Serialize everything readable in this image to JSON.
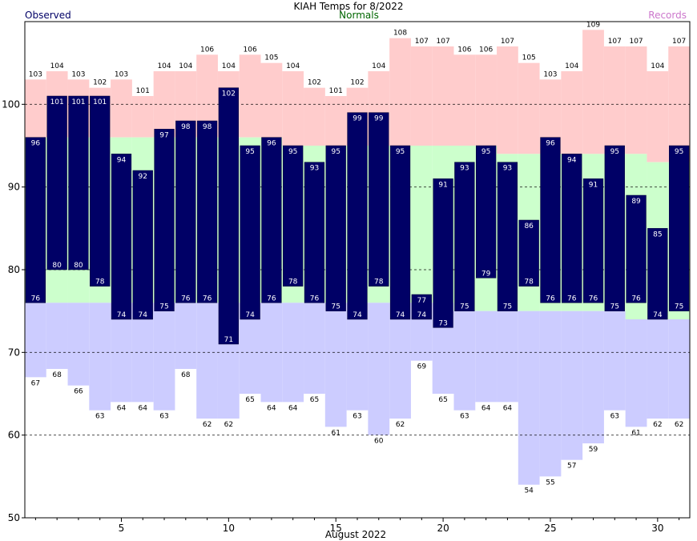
{
  "chart_data": {
    "type": "bar",
    "title": "KIAH Temps for 8/2022",
    "legend": {
      "observed": "Observed",
      "normals": "Normals",
      "records": "Records"
    },
    "xlabel": "August 2022",
    "x": [
      1,
      2,
      3,
      4,
      5,
      6,
      7,
      8,
      9,
      10,
      11,
      12,
      13,
      14,
      15,
      16,
      17,
      18,
      19,
      20,
      21,
      22,
      23,
      24,
      25,
      26,
      27,
      28,
      29,
      30,
      31
    ],
    "xticks": [
      5,
      10,
      15,
      20,
      25,
      30
    ],
    "ylim": [
      50,
      110
    ],
    "yticks": [
      50,
      60,
      70,
      80,
      90,
      100
    ],
    "grid_dashed": [
      60,
      70,
      80,
      90,
      100
    ],
    "colors": {
      "observed": "#000066",
      "normals": "#ccffcc",
      "records_high": "#ffcccc",
      "records_low": "#ccccff",
      "observed_text": "#000066",
      "normals_text": "#006600",
      "records_text": "#cc77cc"
    },
    "series": [
      {
        "name": "Observed",
        "key": "obs_high",
        "values": [
          96,
          101,
          101,
          101,
          94,
          92,
          97,
          98,
          98,
          102,
          95,
          96,
          95,
          93,
          95,
          99,
          99,
          95,
          77,
          91,
          93,
          95,
          93,
          86,
          96,
          94,
          91,
          95,
          89,
          85,
          95
        ]
      },
      {
        "name": "Observed",
        "key": "obs_low",
        "values": [
          76,
          80,
          80,
          78,
          74,
          74,
          75,
          76,
          76,
          71,
          74,
          76,
          78,
          76,
          75,
          74,
          78,
          74,
          74,
          73,
          75,
          79,
          75,
          78,
          76,
          76,
          76,
          75,
          76,
          74,
          75
        ]
      },
      {
        "name": "Normals",
        "key": "normal_high",
        "values": [
          96,
          96,
          96,
          96,
          96,
          96,
          96,
          96,
          96,
          96,
          96,
          96,
          95,
          95,
          95,
          95,
          95,
          95,
          95,
          95,
          95,
          95,
          94,
          94,
          94,
          94,
          94,
          94,
          94,
          93,
          93
        ]
      },
      {
        "name": "Normals",
        "key": "normal_low",
        "values": [
          76,
          76,
          76,
          76,
          76,
          76,
          76,
          76,
          76,
          76,
          76,
          76,
          76,
          76,
          76,
          76,
          76,
          76,
          76,
          76,
          75,
          75,
          75,
          75,
          75,
          75,
          75,
          75,
          74,
          74,
          74
        ]
      },
      {
        "name": "Records",
        "key": "record_high",
        "values": [
          103,
          104,
          103,
          102,
          103,
          101,
          104,
          104,
          106,
          104,
          106,
          105,
          104,
          102,
          101,
          102,
          104,
          108,
          107,
          107,
          106,
          106,
          107,
          105,
          103,
          104,
          109,
          107,
          107,
          104,
          107
        ]
      },
      {
        "name": "Records",
        "key": "record_low",
        "values": [
          67,
          68,
          66,
          63,
          64,
          64,
          63,
          68,
          62,
          62,
          65,
          64,
          64,
          65,
          61,
          63,
          60,
          62,
          69,
          65,
          63,
          64,
          64,
          54,
          55,
          57,
          59,
          63,
          61,
          62,
          62
        ]
      }
    ]
  }
}
